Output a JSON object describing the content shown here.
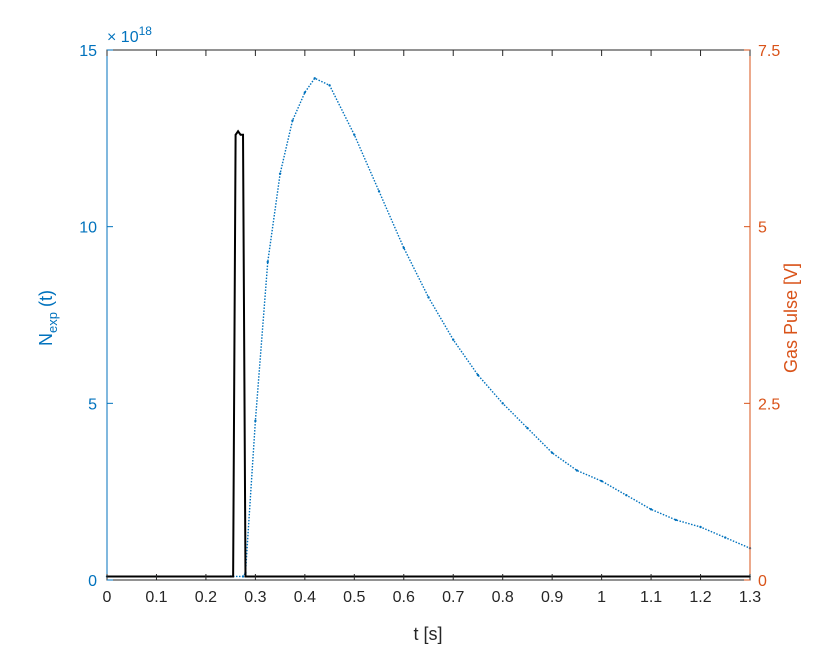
{
  "chart_data": {
    "type": "line",
    "xlabel": "t [s]",
    "ylabel_left": {
      "main": "N",
      "sub": "exp",
      "tail": " (t)"
    },
    "ylabel_right": "Gas Pulse [V]",
    "left_exponent": {
      "base": "× 10",
      "power": "18"
    },
    "xlim": [
      0,
      1.3
    ],
    "ylim_left": [
      0,
      15
    ],
    "ylim_right": [
      0,
      7.5
    ],
    "x_ticks": [
      "0",
      "0.1",
      "0.2",
      "0.3",
      "0.4",
      "0.5",
      "0.6",
      "0.7",
      "0.8",
      "0.9",
      "1",
      "1.1",
      "1.2",
      "1.3"
    ],
    "y_ticks_left": [
      "0",
      "5",
      "10",
      "15"
    ],
    "y_ticks_right": [
      "0",
      "2.5",
      "5",
      "7.5"
    ],
    "colors": {
      "left": "#0072BD",
      "right": "#D95319",
      "pulse": "#000000",
      "axes": "#262626"
    },
    "series": [
      {
        "axis": "left",
        "style": "dotted",
        "color": "#0072BD",
        "x": [
          0,
          0.1,
          0.25,
          0.275,
          0.28,
          0.3,
          0.325,
          0.35,
          0.375,
          0.4,
          0.42,
          0.45,
          0.5,
          0.55,
          0.6,
          0.65,
          0.7,
          0.75,
          0.8,
          0.85,
          0.9,
          0.95,
          1.0,
          1.05,
          1.1,
          1.15,
          1.2,
          1.25,
          1.3
        ],
        "y": [
          0.1,
          0.1,
          0.1,
          0.1,
          0.2,
          4.5,
          9.0,
          11.5,
          13.0,
          13.8,
          14.2,
          14.0,
          12.6,
          11.0,
          9.4,
          8.0,
          6.8,
          5.8,
          5.0,
          4.3,
          3.6,
          3.1,
          2.8,
          2.4,
          2.0,
          1.7,
          1.5,
          1.2,
          0.9
        ]
      },
      {
        "axis": "right",
        "style": "solid",
        "color": "#000000",
        "x": [
          0,
          0.255,
          0.26,
          0.265,
          0.27,
          0.275,
          0.28,
          1.3
        ],
        "y": [
          0.05,
          0.05,
          6.3,
          6.35,
          6.3,
          6.3,
          0.05,
          0.05
        ]
      }
    ]
  }
}
